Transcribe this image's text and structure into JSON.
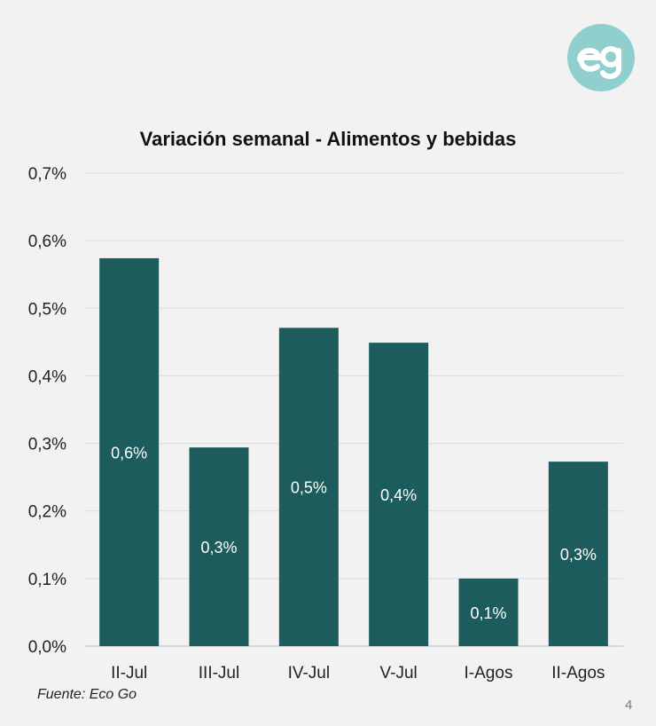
{
  "brand": {
    "logo_text": "eg",
    "logo_color": "#8fd0cf"
  },
  "title": "Variación semanal - Alimentos y bebidas",
  "source": "Fuente: Eco Go",
  "page_number": "4",
  "chart_data": {
    "type": "bar",
    "title": "Variación semanal - Alimentos y bebidas",
    "categories": [
      "II-Jul",
      "III-Jul",
      "IV-Jul",
      "V-Jul",
      "I-Agos",
      "II-Agos"
    ],
    "values": [
      0.574,
      0.294,
      0.471,
      0.449,
      0.1,
      0.273
    ],
    "data_labels": [
      "0,6%",
      "0,3%",
      "0,5%",
      "0,4%",
      "0,1%",
      "0,3%"
    ],
    "yticks": [
      "0,0%",
      "0,1%",
      "0,2%",
      "0,3%",
      "0,4%",
      "0,5%",
      "0,6%",
      "0,7%"
    ],
    "ylim": [
      0,
      0.7
    ],
    "xlabel": "",
    "ylabel": "",
    "grid": true,
    "legend": "none",
    "bar_color": "#1d5c5c",
    "label_color": "#ffffff"
  }
}
